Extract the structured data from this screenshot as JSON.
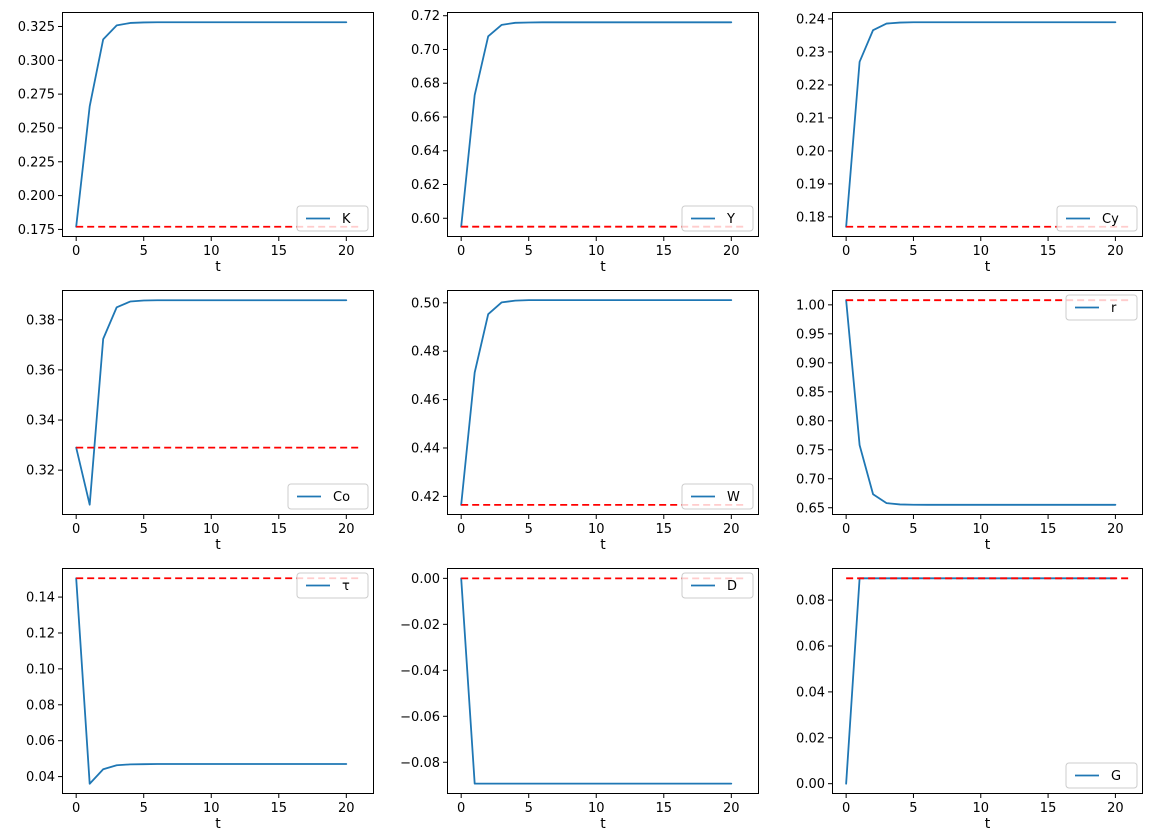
{
  "figure": {
    "background": "#ffffff",
    "series_color": "#1f77b4",
    "steady_state_color": "#ff0000",
    "spine_color": "#000000",
    "legend_border_color": "#cccccc",
    "grid": false
  },
  "chart_data": [
    {
      "type": "line",
      "id": "k",
      "legend": "K",
      "legend_loc": "lower right",
      "title": "",
      "xlabel": "t",
      "ylabel": "",
      "x": [
        0,
        1,
        2,
        3,
        4,
        5,
        6,
        7,
        8,
        9,
        10,
        11,
        12,
        13,
        14,
        15,
        16,
        17,
        18,
        19,
        20
      ],
      "values": [
        0.177,
        0.266,
        0.3155,
        0.3258,
        0.3276,
        0.328,
        0.3281,
        0.3281,
        0.3281,
        0.3281,
        0.3281,
        0.3281,
        0.3281,
        0.3281,
        0.3281,
        0.3281,
        0.3281,
        0.3281,
        0.3281,
        0.3281,
        0.3281
      ],
      "steady_state": 0.177,
      "steady_state_x": [
        0,
        21
      ],
      "xlim": [
        -1.05,
        22.05
      ],
      "ylim": [
        0.1694,
        0.3357
      ],
      "xticks": [
        0,
        5,
        10,
        15,
        20
      ],
      "yticks": [
        0.175,
        0.2,
        0.225,
        0.25,
        0.275,
        0.3,
        0.325
      ],
      "ytick_labels": [
        "0.175",
        "0.200",
        "0.225",
        "0.250",
        "0.275",
        "0.300",
        "0.325"
      ]
    },
    {
      "type": "line",
      "id": "y",
      "legend": "Y",
      "legend_loc": "lower right",
      "title": "",
      "xlabel": "t",
      "ylabel": "",
      "x": [
        0,
        1,
        2,
        3,
        4,
        5,
        6,
        7,
        8,
        9,
        10,
        11,
        12,
        13,
        14,
        15,
        16,
        17,
        18,
        19,
        20
      ],
      "values": [
        0.595,
        0.673,
        0.7078,
        0.7146,
        0.7158,
        0.716,
        0.7161,
        0.7161,
        0.7161,
        0.7161,
        0.7161,
        0.7161,
        0.7161,
        0.7161,
        0.7161,
        0.7161,
        0.7161,
        0.7161,
        0.7161,
        0.7161,
        0.7161
      ],
      "steady_state": 0.595,
      "steady_state_x": [
        0,
        21
      ],
      "xlim": [
        -1.05,
        22.05
      ],
      "ylim": [
        0.5889,
        0.7222
      ],
      "xticks": [
        0,
        5,
        10,
        15,
        20
      ],
      "yticks": [
        0.6,
        0.62,
        0.64,
        0.66,
        0.68,
        0.7,
        0.72
      ],
      "ytick_labels": [
        "0.60",
        "0.62",
        "0.64",
        "0.66",
        "0.68",
        "0.70",
        "0.72"
      ]
    },
    {
      "type": "line",
      "id": "cy",
      "legend": "Cy",
      "legend_loc": "lower right",
      "title": "",
      "xlabel": "t",
      "ylabel": "",
      "x": [
        0,
        1,
        2,
        3,
        4,
        5,
        6,
        7,
        8,
        9,
        10,
        11,
        12,
        13,
        14,
        15,
        16,
        17,
        18,
        19,
        20
      ],
      "values": [
        0.177,
        0.227,
        0.2366,
        0.2386,
        0.2389,
        0.239,
        0.239,
        0.239,
        0.239,
        0.239,
        0.239,
        0.239,
        0.239,
        0.239,
        0.239,
        0.239,
        0.239,
        0.239,
        0.239,
        0.239,
        0.239
      ],
      "steady_state": 0.177,
      "steady_state_x": [
        0,
        21
      ],
      "xlim": [
        -1.05,
        22.05
      ],
      "ylim": [
        0.1739,
        0.2421
      ],
      "xticks": [
        0,
        5,
        10,
        15,
        20
      ],
      "yticks": [
        0.18,
        0.19,
        0.2,
        0.21,
        0.22,
        0.23,
        0.24
      ],
      "ytick_labels": [
        "0.18",
        "0.19",
        "0.20",
        "0.21",
        "0.22",
        "0.23",
        "0.24"
      ]
    },
    {
      "type": "line",
      "id": "co",
      "legend": "Co",
      "legend_loc": "lower right",
      "title": "",
      "xlabel": "t",
      "ylabel": "",
      "x": [
        0,
        1,
        2,
        3,
        4,
        5,
        6,
        7,
        8,
        9,
        10,
        11,
        12,
        13,
        14,
        15,
        16,
        17,
        18,
        19,
        20
      ],
      "values": [
        0.329,
        0.3062,
        0.3724,
        0.385,
        0.3873,
        0.3877,
        0.3878,
        0.3878,
        0.3878,
        0.3878,
        0.3878,
        0.3878,
        0.3878,
        0.3878,
        0.3878,
        0.3878,
        0.3878,
        0.3878,
        0.3878,
        0.3878,
        0.3878
      ],
      "steady_state": 0.329,
      "steady_state_x": [
        0,
        21
      ],
      "xlim": [
        -1.05,
        22.05
      ],
      "ylim": [
        0.3021,
        0.3919
      ],
      "xticks": [
        0,
        5,
        10,
        15,
        20
      ],
      "yticks": [
        0.32,
        0.34,
        0.36,
        0.38
      ],
      "ytick_labels": [
        "0.32",
        "0.34",
        "0.36",
        "0.38"
      ]
    },
    {
      "type": "line",
      "id": "w",
      "legend": "W",
      "legend_loc": "lower right",
      "title": "",
      "xlabel": "t",
      "ylabel": "",
      "x": [
        0,
        1,
        2,
        3,
        4,
        5,
        6,
        7,
        8,
        9,
        10,
        11,
        12,
        13,
        14,
        15,
        16,
        17,
        18,
        19,
        20
      ],
      "values": [
        0.4165,
        0.4712,
        0.4953,
        0.5002,
        0.5009,
        0.5011,
        0.5011,
        0.5011,
        0.5011,
        0.5011,
        0.5011,
        0.5011,
        0.5011,
        0.5011,
        0.5011,
        0.5011,
        0.5011,
        0.5011,
        0.5011,
        0.5011,
        0.5011
      ],
      "steady_state": 0.4165,
      "steady_state_x": [
        0,
        21
      ],
      "xlim": [
        -1.05,
        22.05
      ],
      "ylim": [
        0.4123,
        0.5053
      ],
      "xticks": [
        0,
        5,
        10,
        15,
        20
      ],
      "yticks": [
        0.42,
        0.44,
        0.46,
        0.48,
        0.5
      ],
      "ytick_labels": [
        "0.42",
        "0.44",
        "0.46",
        "0.48",
        "0.50"
      ]
    },
    {
      "type": "line",
      "id": "r",
      "legend": "r",
      "legend_loc": "upper right",
      "title": "",
      "xlabel": "t",
      "ylabel": "",
      "x": [
        0,
        1,
        2,
        3,
        4,
        5,
        6,
        7,
        8,
        9,
        10,
        11,
        12,
        13,
        14,
        15,
        16,
        17,
        18,
        19,
        20
      ],
      "values": [
        1.008,
        0.758,
        0.6732,
        0.658,
        0.6557,
        0.6552,
        0.6551,
        0.6551,
        0.6551,
        0.6551,
        0.6551,
        0.6551,
        0.6551,
        0.6551,
        0.6551,
        0.6551,
        0.6551,
        0.6551,
        0.6551,
        0.6551,
        0.6551
      ],
      "steady_state": 1.008,
      "steady_state_x": [
        0,
        21
      ],
      "xlim": [
        -1.05,
        22.05
      ],
      "ylim": [
        0.6375,
        1.0256
      ],
      "xticks": [
        0,
        5,
        10,
        15,
        20
      ],
      "yticks": [
        0.65,
        0.7,
        0.75,
        0.8,
        0.85,
        0.9,
        0.95,
        1.0
      ],
      "ytick_labels": [
        "0.65",
        "0.70",
        "0.75",
        "0.80",
        "0.85",
        "0.90",
        "0.95",
        "1.00"
      ]
    },
    {
      "type": "line",
      "id": "tau",
      "legend": "τ",
      "legend_loc": "upper right",
      "title": "",
      "xlabel": "t",
      "ylabel": "",
      "x": [
        0,
        1,
        2,
        3,
        4,
        5,
        6,
        7,
        8,
        9,
        10,
        11,
        12,
        13,
        14,
        15,
        16,
        17,
        18,
        19,
        20
      ],
      "values": [
        0.1505,
        0.036,
        0.0441,
        0.0463,
        0.0468,
        0.0469,
        0.047,
        0.047,
        0.047,
        0.047,
        0.047,
        0.047,
        0.047,
        0.047,
        0.047,
        0.047,
        0.047,
        0.047,
        0.047,
        0.047,
        0.047
      ],
      "steady_state": 0.1505,
      "steady_state_x": [
        0,
        21
      ],
      "xlim": [
        -1.05,
        22.05
      ],
      "ylim": [
        0.0303,
        0.1562
      ],
      "xticks": [
        0,
        5,
        10,
        15,
        20
      ],
      "yticks": [
        0.04,
        0.06,
        0.08,
        0.1,
        0.12,
        0.14
      ],
      "ytick_labels": [
        "0.04",
        "0.06",
        "0.08",
        "0.10",
        "0.12",
        "0.14"
      ]
    },
    {
      "type": "line",
      "id": "d",
      "legend": "D",
      "legend_loc": "upper right",
      "title": "",
      "xlabel": "t",
      "ylabel": "",
      "x": [
        0,
        1,
        2,
        3,
        4,
        5,
        6,
        7,
        8,
        9,
        10,
        11,
        12,
        13,
        14,
        15,
        16,
        17,
        18,
        19,
        20
      ],
      "values": [
        0.0,
        -0.0893,
        -0.0893,
        -0.0893,
        -0.0893,
        -0.0893,
        -0.0893,
        -0.0893,
        -0.0893,
        -0.0893,
        -0.0893,
        -0.0893,
        -0.0893,
        -0.0893,
        -0.0893,
        -0.0893,
        -0.0893,
        -0.0893,
        -0.0893,
        -0.0893,
        -0.0893
      ],
      "steady_state": 0.0,
      "steady_state_x": [
        0,
        21
      ],
      "xlim": [
        -1.05,
        22.05
      ],
      "ylim": [
        -0.0938,
        0.0045
      ],
      "xticks": [
        0,
        5,
        10,
        15,
        20
      ],
      "yticks": [
        0.0,
        -0.02,
        -0.04,
        -0.06,
        -0.08
      ],
      "ytick_labels": [
        "0.00",
        "−0.02",
        "−0.04",
        "−0.06",
        "−0.08"
      ]
    },
    {
      "type": "line",
      "id": "g",
      "legend": "G",
      "legend_loc": "lower right",
      "title": "",
      "xlabel": "t",
      "ylabel": "",
      "x": [
        0,
        1,
        2,
        3,
        4,
        5,
        6,
        7,
        8,
        9,
        10,
        11,
        12,
        13,
        14,
        15,
        16,
        17,
        18,
        19,
        20
      ],
      "values": [
        0.0,
        0.0895,
        0.0895,
        0.0895,
        0.0895,
        0.0895,
        0.0895,
        0.0895,
        0.0895,
        0.0895,
        0.0895,
        0.0895,
        0.0895,
        0.0895,
        0.0895,
        0.0895,
        0.0895,
        0.0895,
        0.0895,
        0.0895,
        0.0895
      ],
      "steady_state": 0.0895,
      "steady_state_x": [
        0,
        21
      ],
      "xlim": [
        -1.05,
        22.05
      ],
      "ylim": [
        -0.0045,
        0.094
      ],
      "xticks": [
        0,
        5,
        10,
        15,
        20
      ],
      "yticks": [
        0.0,
        0.02,
        0.04,
        0.06,
        0.08
      ],
      "ytick_labels": [
        "0.00",
        "0.02",
        "0.04",
        "0.06",
        "0.08"
      ]
    }
  ]
}
